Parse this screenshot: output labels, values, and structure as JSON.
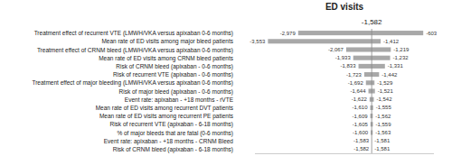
{
  "chart_data": {
    "type": "bar",
    "orientation": "horizontal",
    "title": "ED visits",
    "categories": [
      "Treatment effect of recurrent VTE (LMWH/VKA versus apixaban 0-6 months)",
      "Mean rate of ED visits among major bleed patients",
      "Treatment effect of CRNM bleed (LMWH/VKA versus apixaban 0-6 months)",
      "Mean rate of ED visits among CRNM bleed patients",
      "Risk of CRNM bleed (apixaban - 0-6 months)",
      "Risk of recurrent VTE (apixaban - 0-6 months)",
      "Treatment effect of major bleeding (LMWH/VKA versus apixaban 0-6 months)",
      "Risk of major bleed (apixaban - 0-6 months)",
      "Event rate: apixaban - +18 months - rVTE",
      "Mean rate of ED visits among recurrent DVT patients",
      "Mean rate of ED visits among recurrent PE patients",
      "Risk of recurrent VTE (apixaban - 6-18 months)",
      "% of major bleeds that are fatal (0-6 months)",
      "Event rate: apixaban - +18 months - CRNM Bleed",
      "Risk of CRNM bleed (apixaban - 6-18 months)"
    ],
    "low_values": [
      -2979,
      -3553,
      -2067,
      -1933,
      -1833,
      -1723,
      -1692,
      -1644,
      -1622,
      -1610,
      -1609,
      -1605,
      -1600,
      -1583,
      -1582
    ],
    "low_value_labels": [
      "-2,979",
      "-3,553",
      "-2,067",
      "-1,933",
      "-1,833",
      "-1,723",
      "-1,692",
      "-1,644",
      "-1,622",
      "-1,610",
      "-1,609",
      "-1,605",
      "-1,600",
      "-1,583",
      "-1,582"
    ],
    "high_values": [
      -603,
      -1412,
      -1219,
      -1232,
      -1331,
      -1442,
      -1529,
      -1521,
      -1542,
      -1555,
      -1562,
      -1559,
      -1563,
      -1581,
      -1581
    ],
    "high_value_labels": [
      "-603",
      "-1,412",
      "-1,219",
      "-1,232",
      "-1,331",
      "-1,442",
      "-1,529",
      "-1,521",
      "-1,542",
      "-1,555",
      "-1,562",
      "-1,559",
      "-1,563",
      "-1,581",
      "-1,581"
    ],
    "baseline": {
      "value": -1582,
      "label": "-1,582",
      "color": "#888888"
    },
    "color": "#a8a8a8",
    "xlim": [
      -3800,
      -400
    ],
    "tick_labels": false,
    "grid": false,
    "data_labels": true
  }
}
